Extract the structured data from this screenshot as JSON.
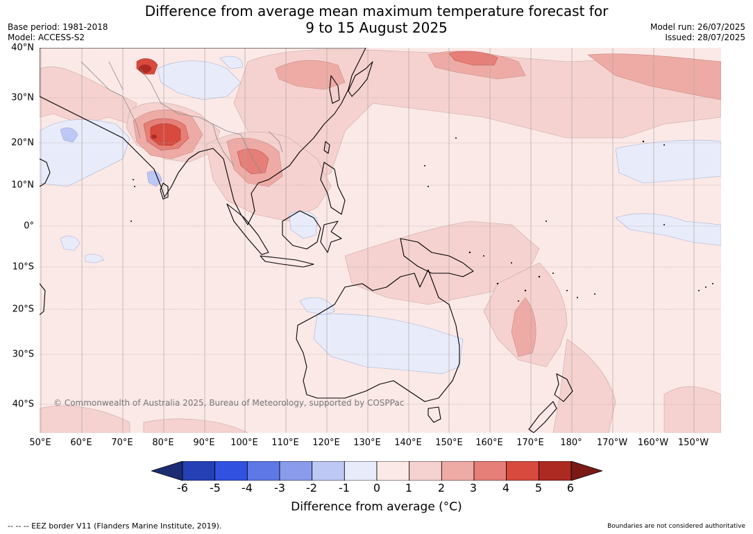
{
  "header": {
    "title_line1": "Difference from average mean maximum temperature forecast for",
    "title_line2": "9 to 15 August 2025",
    "base_period": "Base period: 1981-2018",
    "model": "Model: ACCESS-S2",
    "model_run": "Model run: 26/07/2025",
    "issued": "Issued: 28/07/2025"
  },
  "map": {
    "lat_labels": [
      "40°N",
      "30°N",
      "20°N",
      "10°N",
      "0°",
      "10°S",
      "20°S",
      "30°S",
      "40°S"
    ],
    "lon_labels": [
      "50°E",
      "60°E",
      "70°E",
      "80°E",
      "90°E",
      "100°E",
      "110°E",
      "120°E",
      "130°E",
      "140°E",
      "150°E",
      "160°E",
      "170°E",
      "180°",
      "170°W",
      "160°W",
      "150°W"
    ],
    "copyright": "© Commonwealth of Australia 2025, Bureau of Meteorology, supported by COSPPac",
    "ocean_base_color": "#fbe9e7"
  },
  "colorbar": {
    "ticks": [
      "-6",
      "-5",
      "-4",
      "-3",
      "-2",
      "-1",
      "0",
      "1",
      "2",
      "3",
      "4",
      "5",
      "6"
    ],
    "colors": [
      "#1c2c72",
      "#2440b4",
      "#3152e1",
      "#5e79e6",
      "#8a9bec",
      "#bec8f5",
      "#e8ecfa",
      "#fbe9e7",
      "#f5d2cf",
      "#eeaba6",
      "#e57f77",
      "#d84a3e",
      "#ad2a23",
      "#7a1a16"
    ],
    "label": "Difference from average (°C)"
  },
  "footer": {
    "eez_note": "--  --  -- EEZ border V11 (Flanders Marine Institute, 2019).",
    "disclaimer": "Boundaries are not considered authoritative"
  }
}
